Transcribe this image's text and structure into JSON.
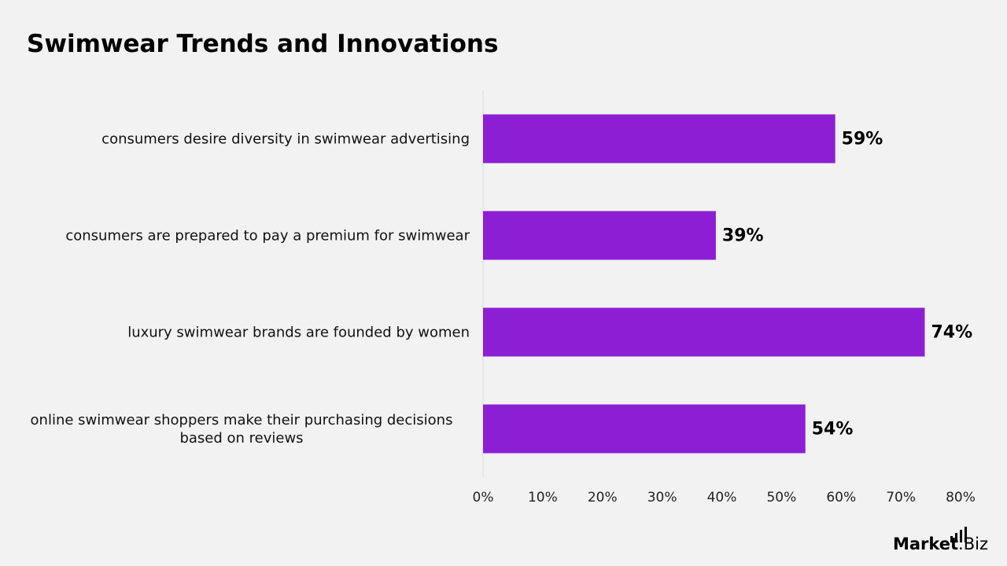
{
  "chart_data": {
    "type": "bar",
    "orientation": "horizontal",
    "title": "Swimwear Trends and Innovations",
    "categories": [
      "consumers desire diversity in swimwear advertising",
      "consumers are prepared to pay a premium for swimwear",
      "luxury swimwear brands are founded by women",
      "online swimwear shoppers make their purchasing decisions based on reviews"
    ],
    "values": [
      59,
      39,
      74,
      54
    ],
    "value_labels": [
      "59%",
      "39%",
      "74%",
      "54%"
    ],
    "color": "#8c1fd3",
    "xlim": [
      0,
      80
    ],
    "xticks": [
      {
        "value": 0,
        "label": "0%"
      },
      {
        "value": 10,
        "label": "10%"
      },
      {
        "value": 20,
        "label": "20%"
      },
      {
        "value": 30,
        "label": "30%"
      },
      {
        "value": 40,
        "label": "40%"
      },
      {
        "value": 50,
        "label": "50%"
      },
      {
        "value": 60,
        "label": "60%"
      },
      {
        "value": 70,
        "label": "70%"
      },
      {
        "value": 80,
        "label": "80%"
      }
    ],
    "grid": false
  },
  "logo": {
    "text": "Market",
    "suffix": ".Biz"
  }
}
